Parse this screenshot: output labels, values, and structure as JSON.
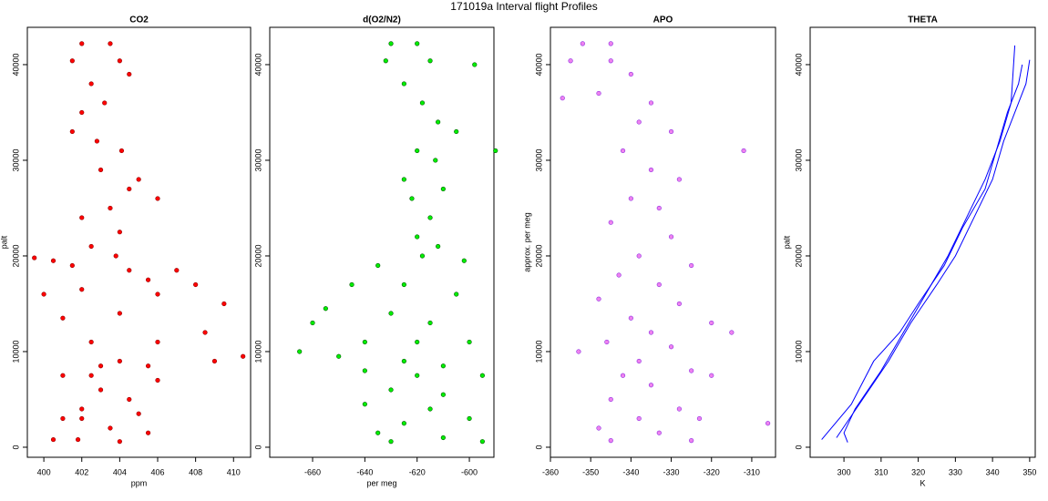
{
  "title": "171019a   Interval flight Profiles",
  "chart_data": [
    {
      "type": "scatter",
      "title": "CO2",
      "xlabel": "ppm",
      "ylabel": "palt",
      "color": "#ff0000",
      "edgecolor": "#8b0000",
      "xlim": [
        399.13,
        410.9
      ],
      "ylim": [
        -1050,
        43900
      ],
      "xticks": [
        400,
        402,
        404,
        406,
        408,
        410
      ],
      "yticks": [
        0,
        10000,
        20000,
        30000,
        40000
      ],
      "x": [
        402.0,
        403.5,
        401.5,
        404,
        402.5,
        403.2,
        401.5,
        402.8,
        404.1,
        403,
        405,
        406,
        403.5,
        402,
        404,
        402.5,
        403.8,
        400.5,
        401.5,
        404.5,
        407,
        405.5,
        408,
        402,
        406,
        409.5,
        404,
        401,
        408.5,
        406,
        402.5,
        410.5,
        409,
        404,
        405.5,
        403,
        401,
        402.5,
        406,
        403,
        404.5,
        402,
        405,
        401,
        402,
        403.5,
        405.5,
        400.5,
        401.8,
        404,
        399.5,
        400,
        404.5,
        402,
        404.5
      ],
      "y": [
        42200,
        42200,
        40400,
        40400,
        38000,
        36000,
        33000,
        32000,
        31000,
        29000,
        28000,
        26000,
        25000,
        24000,
        22500,
        21000,
        20000,
        19500,
        19000,
        18500,
        18500,
        17500,
        17000,
        16500,
        16000,
        15000,
        14000,
        13500,
        12000,
        11000,
        11000,
        9500,
        9000,
        9000,
        8500,
        8500,
        7500,
        7500,
        7000,
        6000,
        5000,
        4000,
        3500,
        3000,
        3000,
        2000,
        1500,
        800,
        800,
        600,
        19800,
        16000,
        27000,
        35000,
        39000
      ]
    },
    {
      "type": "scatter",
      "title": "d(O2/N2)",
      "xlabel": "per meg",
      "color": "#00ee00",
      "edgecolor": "#005500",
      "xlim": [
        -676.4,
        -590.6
      ],
      "ylim": [
        -1050,
        43900
      ],
      "xticks": [
        -660,
        -640,
        -620,
        -600
      ],
      "yticks": [
        0,
        10000,
        20000,
        30000,
        40000
      ],
      "x": [
        -630,
        -620,
        -632,
        -615,
        -625,
        -618,
        -612,
        -605,
        -620,
        -613,
        -625,
        -610,
        -622,
        -615,
        -620,
        -612,
        -618,
        -635,
        -602,
        -645,
        -625,
        -605,
        -655,
        -630,
        -615,
        -660,
        -640,
        -620,
        -600,
        -665,
        -650,
        -625,
        -610,
        -640,
        -620,
        -595,
        -630,
        -610,
        -640,
        -615,
        -600,
        -625,
        -635,
        -610,
        -630,
        -595,
        -590,
        -598
      ],
      "y": [
        42200,
        42200,
        40400,
        40400,
        38000,
        36000,
        34000,
        33000,
        31000,
        30000,
        28000,
        27000,
        26000,
        24000,
        22000,
        21000,
        20000,
        19000,
        19500,
        17000,
        17000,
        16000,
        14500,
        14000,
        13000,
        13000,
        11000,
        11000,
        11000,
        10000,
        9500,
        9000,
        8500,
        8000,
        7500,
        7500,
        6000,
        5500,
        4500,
        4000,
        3000,
        2500,
        1500,
        1000,
        600,
        600,
        31000,
        40000
      ]
    },
    {
      "type": "scatter",
      "title": "APO",
      "ylabel": "approx. per meg",
      "color": "#ee82ee",
      "edgecolor": "#8a2be2",
      "xlim": [
        -360,
        -304.1
      ],
      "ylim": [
        -1050,
        43900
      ],
      "xticks": [
        -360,
        -350,
        -340,
        -330,
        -320,
        -310
      ],
      "yticks": [
        0,
        10000,
        20000,
        30000,
        40000
      ],
      "x": [
        -352,
        -345,
        -355,
        -345,
        -340,
        -348,
        -335,
        -338,
        -330,
        -342,
        -335,
        -328,
        -340,
        -333,
        -345,
        -330,
        -338,
        -325,
        -343,
        -333,
        -348,
        -328,
        -340,
        -320,
        -335,
        -346,
        -330,
        -353,
        -338,
        -325,
        -342,
        -320,
        -335,
        -345,
        -328,
        -338,
        -323,
        -348,
        -333,
        -345,
        -325,
        -357,
        -312,
        -306,
        -315
      ],
      "y": [
        42200,
        42200,
        40400,
        40400,
        39000,
        37000,
        36000,
        34000,
        33000,
        31000,
        29000,
        28000,
        26000,
        25000,
        23500,
        22000,
        20000,
        19000,
        18000,
        17000,
        15500,
        15000,
        13500,
        13000,
        12000,
        11000,
        10500,
        10000,
        9000,
        8000,
        7500,
        7500,
        6500,
        5000,
        4000,
        3000,
        3000,
        2000,
        1500,
        700,
        700,
        36500,
        31000,
        2500,
        12000
      ]
    },
    {
      "type": "line",
      "title": "THETA",
      "xlabel": "K",
      "ylabel": "palt",
      "color": "#0000ff",
      "xlim": [
        290.9,
        351.5
      ],
      "ylim": [
        -1050,
        43900
      ],
      "xticks": [
        300,
        310,
        320,
        330,
        340,
        350
      ],
      "yticks": [
        0,
        10000,
        20000,
        30000,
        40000
      ],
      "series": [
        {
          "x": [
            301,
            300,
            303,
            310,
            316,
            322,
            328,
            333,
            338,
            342,
            345,
            346
          ],
          "y": [
            500,
            1500,
            4000,
            8000,
            12000,
            16000,
            20000,
            24000,
            28000,
            32000,
            36000,
            42000
          ]
        },
        {
          "x": [
            298,
            305,
            312,
            318,
            325,
            330,
            335,
            340,
            343,
            347,
            349,
            350
          ],
          "y": [
            1000,
            5000,
            9000,
            13000,
            17000,
            20000,
            24000,
            28000,
            32000,
            36000,
            38000,
            40500
          ]
        },
        {
          "x": [
            294,
            302,
            308,
            315,
            320,
            327,
            332,
            338,
            341,
            344,
            347,
            348
          ],
          "y": [
            800,
            4500,
            9000,
            12000,
            15000,
            19000,
            23000,
            27000,
            31000,
            35000,
            38000,
            40000
          ]
        }
      ]
    }
  ]
}
